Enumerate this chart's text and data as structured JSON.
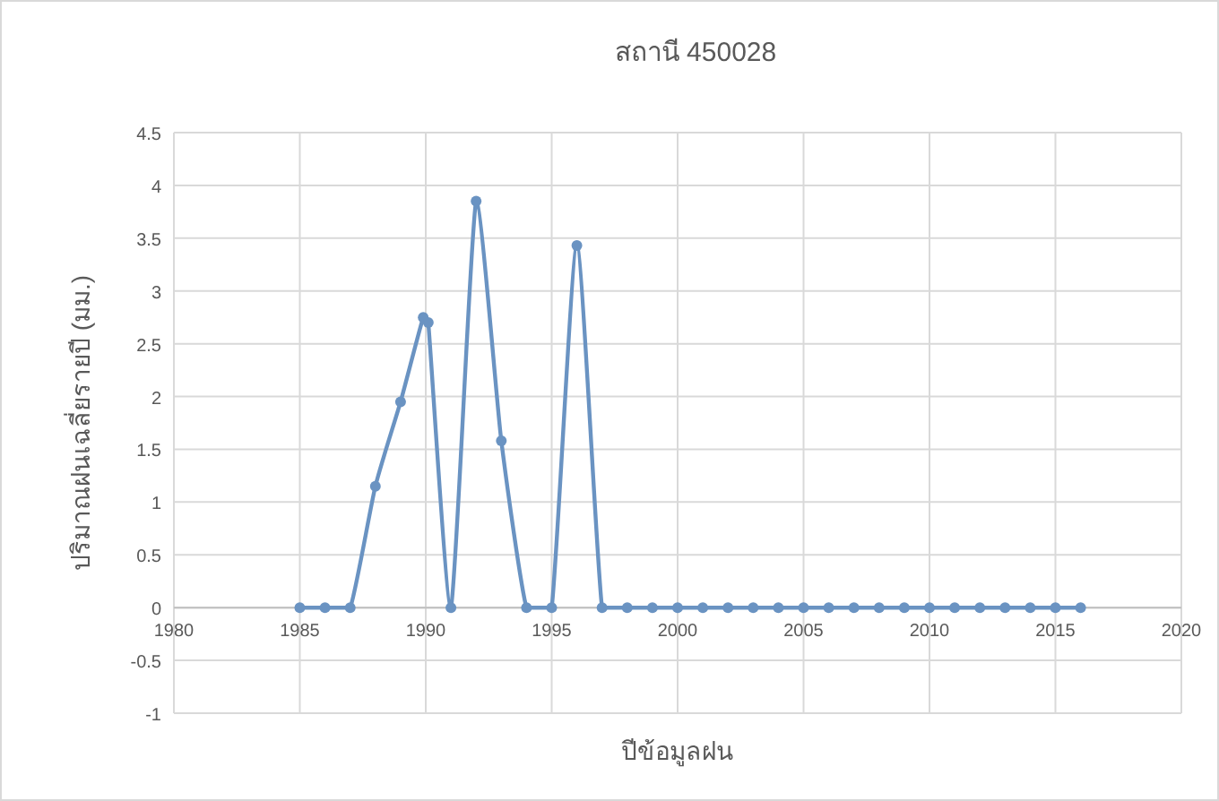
{
  "chart_data": {
    "type": "line",
    "title": "สถานี 450028",
    "xlabel": "ปีข้อมูลฝน",
    "ylabel": "ปริมาณฝนเฉลี่ยรายปี (มม.)",
    "x": [
      1985,
      1986,
      1987,
      1988,
      1989,
      1989.9,
      1990.1,
      1991,
      1992,
      1993,
      1994,
      1995,
      1996,
      1997,
      1998,
      1999,
      2000,
      2001,
      2002,
      2003,
      2004,
      2005,
      2006,
      2007,
      2008,
      2009,
      2010,
      2011,
      2012,
      2013,
      2014,
      2015,
      2016
    ],
    "series": [
      {
        "color": "#6a93c2",
        "values": [
          0,
          0,
          0,
          1.15,
          1.95,
          2.75,
          2.7,
          0,
          3.85,
          1.58,
          0,
          0,
          3.43,
          0,
          0,
          0,
          0,
          0,
          0,
          0,
          0,
          0,
          0,
          0,
          0,
          0,
          0,
          0,
          0,
          0,
          0,
          0,
          0
        ]
      }
    ],
    "xlim": [
      1980,
      2020
    ],
    "xticks": [
      1980,
      1985,
      1990,
      1995,
      2000,
      2005,
      2010,
      2015,
      2020
    ],
    "ylim": [
      -1,
      4.5
    ],
    "yticks": [
      -1,
      -0.5,
      0,
      0.5,
      1,
      1.5,
      2,
      2.5,
      3,
      3.5,
      4,
      4.5
    ],
    "grid": true,
    "marker": "circle",
    "line_style": "solid"
  }
}
